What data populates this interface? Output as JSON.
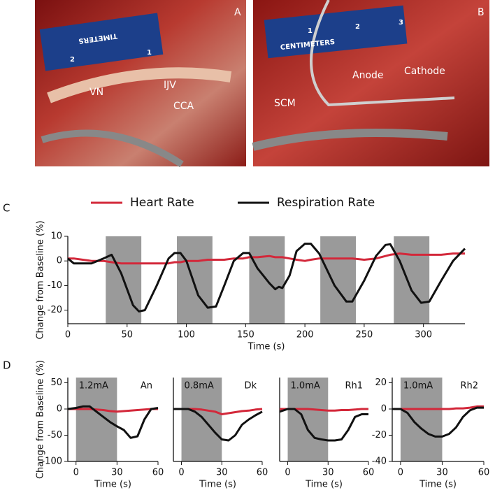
{
  "photos": [
    {
      "label": "A",
      "ruler": [
        "TIMETERS",
        "1",
        "2"
      ],
      "annotations": [
        "VN",
        "IJV",
        "CCA"
      ]
    },
    {
      "label": "B",
      "ruler": [
        "CENTIMETERS",
        "1",
        "2",
        "3"
      ],
      "annotations": [
        "SCM",
        "Anode",
        "Cathode"
      ]
    }
  ],
  "panel_labels": [
    "C",
    "D"
  ],
  "chart_data": [
    {
      "type": "line",
      "legend": "top",
      "xlabel": "Time (s)",
      "ylabel": "Change from Baseline (%)",
      "xlim": [
        0,
        335
      ],
      "ylim": [
        -25.5,
        10
      ],
      "xticks": [
        0,
        50,
        100,
        150,
        200,
        250,
        300
      ],
      "yticks": [
        -20,
        -10,
        0,
        10
      ],
      "shaded": [
        [
          32,
          62
        ],
        [
          92,
          122
        ],
        [
          153,
          183
        ],
        [
          213,
          243
        ],
        [
          275,
          305
        ]
      ],
      "shade_color": "#9a9a9a",
      "x": [
        0,
        5,
        20,
        30,
        37,
        45,
        55,
        60,
        65,
        75,
        85,
        90,
        95,
        100,
        110,
        118,
        125,
        132,
        140,
        148,
        153,
        160,
        170,
        175,
        178,
        181,
        187,
        193,
        200,
        205,
        212,
        225,
        235,
        240,
        250,
        260,
        268,
        272,
        280,
        290,
        298,
        305,
        315,
        325,
        335
      ],
      "series": [
        {
          "name": "Heart Rate",
          "color": "#d3283a",
          "values": [
            1,
            1,
            0,
            0,
            -0.5,
            -1,
            -1,
            -1,
            -1,
            -1,
            -1,
            -0.5,
            -0.5,
            0,
            0,
            0.5,
            0.5,
            0.5,
            1,
            1,
            1.5,
            1.5,
            2,
            1.5,
            1.5,
            1.5,
            1,
            0.5,
            0,
            0.5,
            1,
            1,
            1,
            1,
            0.5,
            1,
            2,
            2.5,
            3,
            2.5,
            2.5,
            2.5,
            2.5,
            3,
            3
          ]
        },
        {
          "name": "Respiration Rate",
          "color": "#111111",
          "values": [
            1,
            -1,
            -1,
            1,
            2.5,
            -5,
            -18,
            -20.5,
            -20,
            -10,
            1,
            3.2,
            3.2,
            0,
            -14,
            -19,
            -18.5,
            -10,
            0,
            3.2,
            3.2,
            -3,
            -9,
            -11.5,
            -10.5,
            -11,
            -6,
            4,
            7,
            7,
            3,
            -10,
            -16.5,
            -16.5,
            -8,
            2,
            6.5,
            6.8,
            0,
            -12,
            -17,
            -16.5,
            -8,
            0,
            5
          ]
        }
      ]
    },
    {
      "type": "line",
      "xlabel": "Time (s)",
      "ylabel": "Change from Baseline (%)",
      "annotations": [
        "1.2mA",
        "An"
      ],
      "xlim": [
        -6,
        60
      ],
      "ylim": [
        -100,
        60
      ],
      "xticks": [
        0,
        30,
        60
      ],
      "yticks": [
        -100,
        -50,
        0,
        50
      ],
      "shaded": [
        [
          0,
          30
        ]
      ],
      "shade_color": "#9a9a9a",
      "x": [
        -6,
        0,
        5,
        10,
        15,
        20,
        25,
        30,
        35,
        40,
        45,
        50,
        55,
        60
      ],
      "series": [
        {
          "color": "#d3283a",
          "values": [
            0,
            0,
            0,
            0,
            -1,
            -2,
            -4,
            -5,
            -4,
            -3,
            -2,
            -1,
            0,
            0
          ]
        },
        {
          "color": "#111111",
          "values": [
            0,
            2,
            5,
            5,
            -5,
            -15,
            -25,
            -33,
            -40,
            -55,
            -52,
            -20,
            0,
            2
          ]
        }
      ]
    },
    {
      "type": "line",
      "xlabel": "Time (s)",
      "annotations": [
        "0.8mA",
        "Dk"
      ],
      "xlim": [
        -6,
        60
      ],
      "ylim": [
        -100,
        60
      ],
      "xticks": [
        0,
        30,
        60
      ],
      "yticks": [],
      "shaded": [
        [
          0,
          30
        ]
      ],
      "shade_color": "#9a9a9a",
      "x": [
        -6,
        0,
        5,
        10,
        15,
        20,
        25,
        30,
        35,
        40,
        45,
        50,
        55,
        60
      ],
      "series": [
        {
          "color": "#d3283a",
          "values": [
            0,
            0,
            0,
            0,
            -1,
            -3,
            -5,
            -10,
            -8,
            -6,
            -4,
            -3,
            -1,
            0
          ]
        },
        {
          "color": "#111111",
          "values": [
            0,
            0,
            0,
            -5,
            -15,
            -30,
            -45,
            -58,
            -60,
            -50,
            -30,
            -20,
            -12,
            -5
          ]
        }
      ]
    },
    {
      "type": "line",
      "xlabel": "Time (s)",
      "annotations": [
        "1.0mA",
        "Rh1"
      ],
      "xlim": [
        -6,
        60
      ],
      "ylim": [
        -100,
        60
      ],
      "xticks": [
        0,
        30,
        60
      ],
      "yticks": [],
      "shaded": [
        [
          0,
          30
        ]
      ],
      "shade_color": "#9a9a9a",
      "x": [
        -6,
        0,
        5,
        10,
        15,
        20,
        25,
        30,
        35,
        40,
        45,
        50,
        55,
        60
      ],
      "series": [
        {
          "color": "#d3283a",
          "values": [
            0,
            0,
            0,
            0,
            0,
            -1,
            -2,
            -3,
            -3,
            -2,
            -2,
            -1,
            0,
            0
          ]
        },
        {
          "color": "#111111",
          "values": [
            -5,
            0,
            0,
            -10,
            -40,
            -55,
            -58,
            -60,
            -60,
            -58,
            -40,
            -15,
            -10,
            -10
          ]
        }
      ]
    },
    {
      "type": "line",
      "xlabel": "Time (s)",
      "annotations": [
        "1.0mA",
        "Rh2"
      ],
      "xlim": [
        -6,
        60
      ],
      "ylim": [
        -40,
        24
      ],
      "xticks": [
        0,
        30,
        60
      ],
      "yticks": [
        -40,
        -20,
        0,
        20
      ],
      "shaded": [
        [
          0,
          30
        ]
      ],
      "shade_color": "#9a9a9a",
      "x": [
        -6,
        0,
        5,
        10,
        15,
        20,
        25,
        30,
        35,
        40,
        45,
        50,
        55,
        60
      ],
      "series": [
        {
          "color": "#d3283a",
          "values": [
            0,
            0,
            0,
            0,
            0,
            0,
            0,
            0,
            0,
            0.5,
            0.5,
            1,
            2,
            2
          ]
        },
        {
          "color": "#111111",
          "values": [
            0,
            0,
            -3,
            -10,
            -15,
            -19,
            -21,
            -21,
            -19,
            -14,
            -6,
            -1,
            1,
            1
          ]
        }
      ]
    }
  ]
}
